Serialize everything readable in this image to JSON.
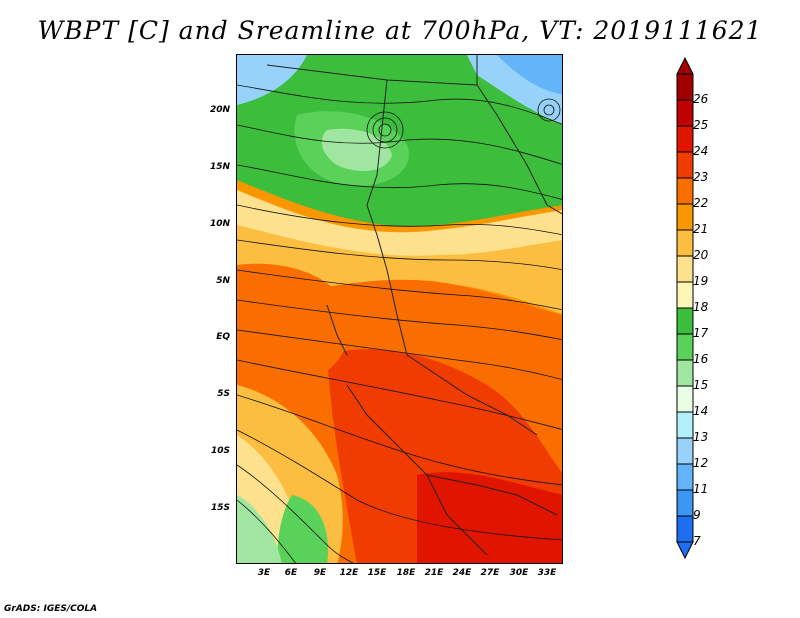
{
  "title": "WBPT [C] and Sreamline at 700hPa, VT: 2019111621",
  "credit": "GrADS: IGES/COLA",
  "lat_labels": [
    "20N",
    "15N",
    "10N",
    "5N",
    "EQ",
    "5S",
    "10S",
    "15S"
  ],
  "lon_labels": [
    "3E",
    "6E",
    "9E",
    "12E",
    "15E",
    "18E",
    "21E",
    "24E",
    "27E",
    "30E",
    "33E"
  ],
  "colorbar": {
    "labels": [
      "26",
      "25",
      "24",
      "23",
      "22",
      "21",
      "20",
      "19",
      "18",
      "17",
      "16",
      "15",
      "14",
      "13",
      "12",
      "11",
      "9",
      "7"
    ],
    "colors": [
      "#a00000",
      "#c00000",
      "#e11400",
      "#f03c00",
      "#fa6e00",
      "#fa9600",
      "#fbbe40",
      "#fde18c",
      "#fff5b4",
      "#3cbe3c",
      "#5ad25a",
      "#a0e6a0",
      "#e6ffe6",
      "#b4f0fa",
      "#96d2fa",
      "#64b4fa",
      "#3c96f5",
      "#1e6ef0"
    ]
  }
}
